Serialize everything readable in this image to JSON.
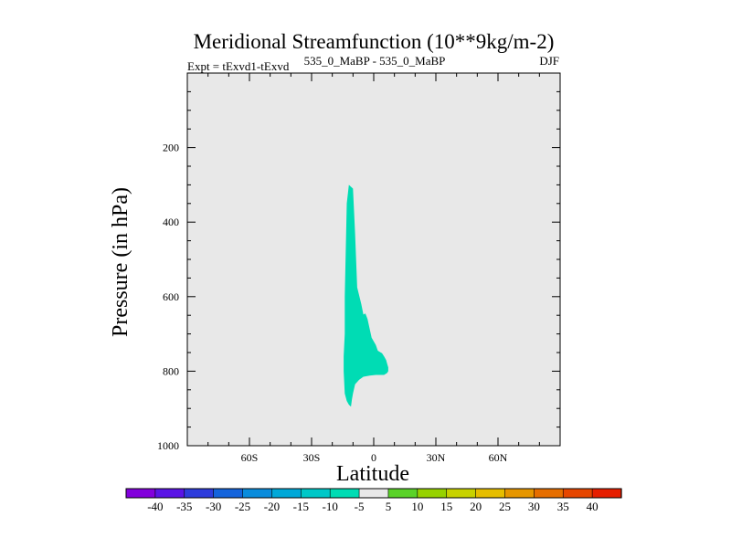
{
  "chart_data": {
    "type": "heatmap",
    "title": "Meridional Streamfunction (10**9kg/m-2)",
    "subtitle_left": "Expt = tExvd1-tExvd",
    "subtitle_center": "535_0_MaBP - 535_0_MaBP",
    "subtitle_right": "DJF",
    "xlabel": "Latitude",
    "ylabel": "Pressure (in hPa)",
    "xlim": [
      -90,
      90
    ],
    "ylim": [
      0,
      1000
    ],
    "x_ticks": [
      {
        "value": -60,
        "label": "60S"
      },
      {
        "value": -30,
        "label": "30S"
      },
      {
        "value": 0,
        "label": "0"
      },
      {
        "value": 30,
        "label": "30N"
      },
      {
        "value": 60,
        "label": "60N"
      }
    ],
    "y_ticks": [
      {
        "value": 200,
        "label": "200"
      },
      {
        "value": 400,
        "label": "400"
      },
      {
        "value": 600,
        "label": "600"
      },
      {
        "value": 800,
        "label": "800"
      },
      {
        "value": 1000,
        "label": "1000"
      }
    ],
    "background_color": "#e8e8e8",
    "shaded_region": {
      "level_range": "-5 to 0",
      "color": "#00dcb4",
      "outline": [
        [
          -12,
          300
        ],
        [
          -10,
          310
        ],
        [
          -9,
          430
        ],
        [
          -8,
          575
        ],
        [
          -6,
          620
        ],
        [
          -5,
          648
        ],
        [
          -4,
          645
        ],
        [
          -3,
          660
        ],
        [
          -1,
          710
        ],
        [
          1,
          730
        ],
        [
          2,
          745
        ],
        [
          4,
          752
        ],
        [
          5,
          760
        ],
        [
          6,
          770
        ],
        [
          6.5,
          780
        ],
        [
          7,
          790
        ],
        [
          7,
          800
        ],
        [
          6.5,
          805
        ],
        [
          5,
          810
        ],
        [
          3,
          810
        ],
        [
          1,
          810
        ],
        [
          -2,
          812
        ],
        [
          -5,
          815
        ],
        [
          -7,
          823
        ],
        [
          -9,
          835
        ],
        [
          -10,
          860
        ],
        [
          -10.5,
          875
        ],
        [
          -11,
          895
        ],
        [
          -12,
          890
        ],
        [
          -13,
          880
        ],
        [
          -14,
          860
        ],
        [
          -14.5,
          800
        ],
        [
          -14.5,
          760
        ],
        [
          -14,
          700
        ],
        [
          -14,
          600
        ],
        [
          -13,
          350
        ]
      ]
    },
    "colorbar": {
      "labels": [
        "-40",
        "-35",
        "-30",
        "-25",
        "-20",
        "-15",
        "-10",
        "-5",
        "5",
        "10",
        "15",
        "20",
        "25",
        "30",
        "35",
        "40"
      ],
      "colors": [
        "#8200dc",
        "#5a14e6",
        "#2e3cdc",
        "#1464dc",
        "#0a8cdc",
        "#00a8d8",
        "#00c8c8",
        "#00dcb4",
        "#e8e8e8",
        "#5ad228",
        "#96d200",
        "#c8d200",
        "#e6be00",
        "#e69600",
        "#e66e00",
        "#e64600",
        "#e61e00"
      ]
    }
  }
}
